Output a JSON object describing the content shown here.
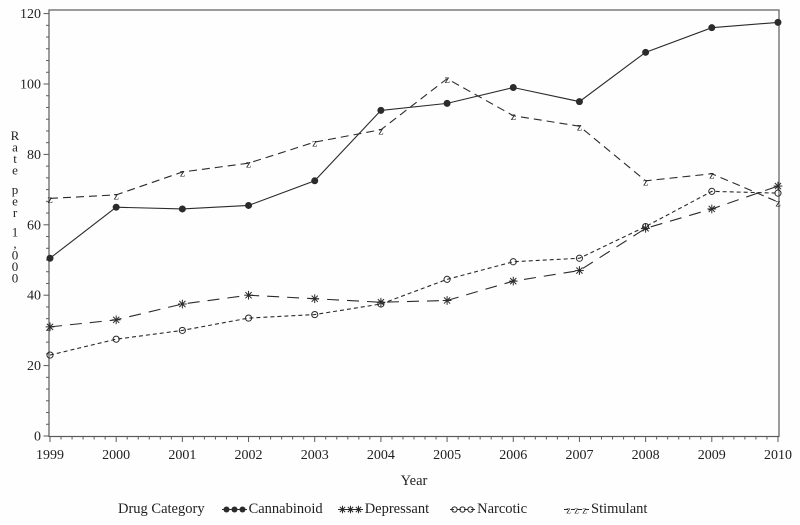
{
  "chart_data": {
    "type": "line",
    "title": "",
    "xlabel": "Year",
    "ylabel": "Rate per 1,000",
    "legend_title": "Drug Category",
    "legend_position": "bottom",
    "grid": false,
    "x": [
      1999,
      2000,
      2001,
      2002,
      2003,
      2004,
      2005,
      2006,
      2007,
      2008,
      2009,
      2010
    ],
    "ylim": [
      0,
      120
    ],
    "yticks": [
      0,
      20,
      40,
      60,
      80,
      100,
      120
    ],
    "series": [
      {
        "name": "Cannabinoid",
        "marker": "filled-circle",
        "line_style": "solid",
        "dash": "",
        "values": [
          50.5,
          65,
          64.5,
          65.5,
          72.5,
          92.5,
          94.5,
          99,
          95,
          109,
          116,
          117.5
        ]
      },
      {
        "name": "Depressant",
        "marker": "asterisk",
        "line_style": "long-dash",
        "dash": "12 8",
        "values": [
          31,
          33,
          37.5,
          40,
          39,
          38,
          38.5,
          44,
          47,
          59,
          64.5,
          71
        ]
      },
      {
        "name": "Narcotic",
        "marker": "open-circle",
        "line_style": "short-dash",
        "dash": "4 3",
        "values": [
          23,
          27.5,
          30,
          33.5,
          34.5,
          37.5,
          44.5,
          49.5,
          50.5,
          59.5,
          69.5,
          69
        ]
      },
      {
        "name": "Stimulant",
        "marker": "z",
        "line_style": "dash",
        "dash": "8 5",
        "values": [
          67.5,
          68.5,
          75,
          77.5,
          83.5,
          87,
          101.5,
          91,
          88,
          72.5,
          74.5,
          66.5
        ]
      }
    ],
    "colors": {
      "series_color": "#2b2b2b",
      "text_color": "#1f1f1f",
      "frame_color": "#5a5a5a",
      "background": "#fefefe"
    }
  }
}
